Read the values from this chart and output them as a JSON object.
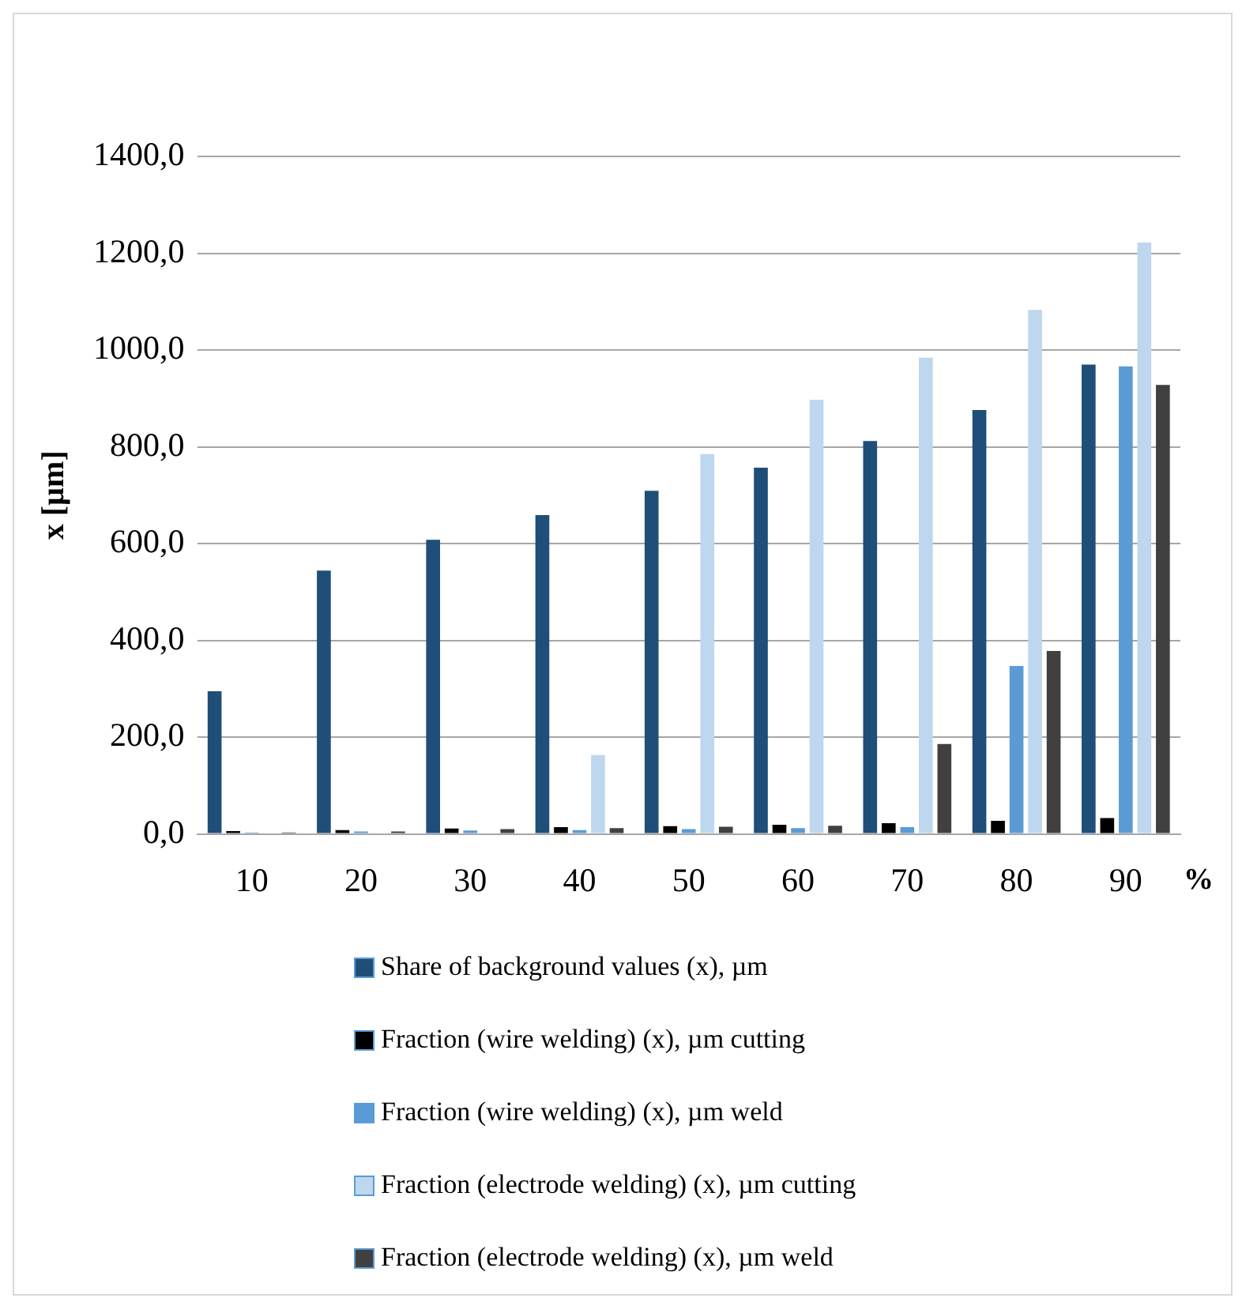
{
  "chart_data": {
    "type": "bar",
    "xlabel": "%",
    "ylabel": "x [µm]",
    "categories": [
      "10",
      "20",
      "30",
      "40",
      "50",
      "60",
      "70",
      "80",
      "90"
    ],
    "series": [
      {
        "name": "Share of background values (x), µm",
        "color": "#1f4e79",
        "values": [
          295,
          544,
          608,
          659,
          709,
          757,
          812,
          876,
          970
        ]
      },
      {
        "name": "Fraction (wire welding) (x), µm cutting",
        "color": "#000000",
        "values": [
          6,
          8,
          11,
          14,
          16,
          19,
          22,
          27,
          33
        ]
      },
      {
        "name": "Fraction (wire welding) (x), µm weld",
        "color": "#5b9bd5",
        "values": [
          3,
          5,
          7,
          8,
          10,
          12,
          14,
          347,
          966
        ]
      },
      {
        "name": "Fraction (electrode welding) (x), µm cutting",
        "color": "#bdd7ee",
        "values": [
          null,
          null,
          null,
          163,
          785,
          897,
          984,
          1083,
          1222
        ]
      },
      {
        "name": "Fraction (electrode welding) (x), µm weld",
        "color": "#404040",
        "values": [
          3,
          5,
          10,
          12,
          15,
          17,
          186,
          378,
          928
        ]
      }
    ],
    "ylim": [
      0,
      1400
    ],
    "yticks": [
      {
        "value": 0,
        "label": "0,0"
      },
      {
        "value": 200,
        "label": "200,0"
      },
      {
        "value": 400,
        "label": "400,0"
      },
      {
        "value": 600,
        "label": "600,0"
      },
      {
        "value": 800,
        "label": "800,0"
      },
      {
        "value": 1000,
        "label": "1000,0"
      },
      {
        "value": 1200,
        "label": "1200,0"
      },
      {
        "value": 1400,
        "label": "1400,0"
      }
    ],
    "grid": "y",
    "legend": "bottom"
  }
}
